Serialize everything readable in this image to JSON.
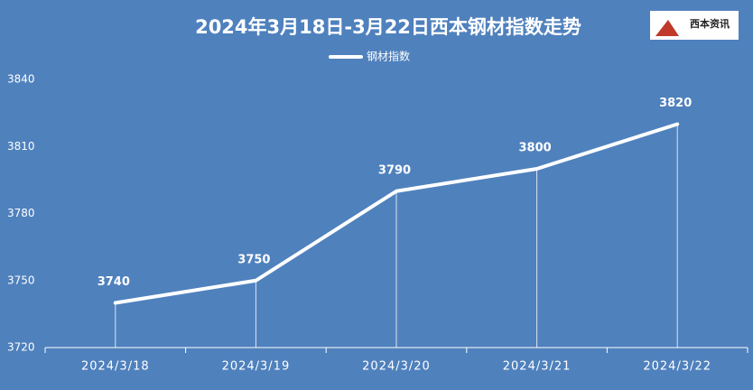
{
  "chart_data": {
    "type": "line",
    "title": "2024年3月18日-3月22日西本钢材指数走势",
    "logo": "西本资讯",
    "categories": [
      "2024/3/18",
      "2024/3/19",
      "2024/3/20",
      "2024/3/21",
      "2024/3/22"
    ],
    "series": [
      {
        "name": "钢材指数",
        "color": "#ffffff",
        "values": [
          3740,
          3750,
          3790,
          3800,
          3820
        ]
      }
    ],
    "ylim": [
      3720,
      3840
    ],
    "yticks": [
      3720,
      3750,
      3780,
      3810,
      3840
    ],
    "grid": false,
    "legend": "top",
    "background": "#4f81bd"
  }
}
